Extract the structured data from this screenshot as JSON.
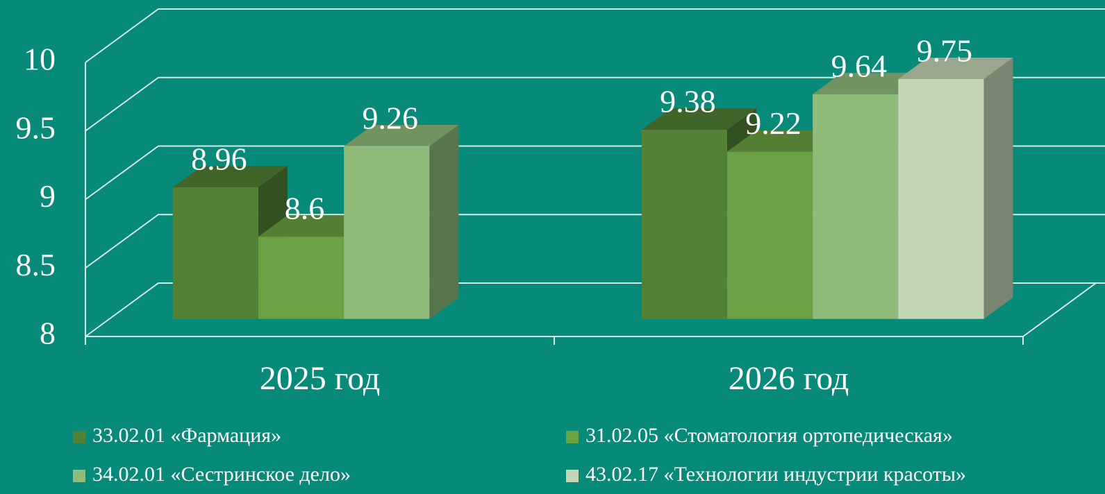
{
  "chart_data": {
    "type": "bar3d",
    "categories": [
      "2025 год",
      "2026 год"
    ],
    "series": [
      {
        "name": "33.02.01 «Фармация»",
        "color": "#538135",
        "values": [
          8.96,
          9.38
        ]
      },
      {
        "name": "31.02.05 «Стоматология ортопедическая»",
        "color": "#6aa142",
        "values": [
          8.6,
          9.22
        ]
      },
      {
        "name": "34.02.01 «Сестринское дело»",
        "color": "#8fbc7a",
        "values": [
          9.26,
          9.64
        ]
      },
      {
        "name": "43.02.17 «Технологии индустрии красоты»",
        "color": "#c3d6b6",
        "values": [
          null,
          9.75
        ]
      }
    ],
    "ylim": [
      8,
      10
    ],
    "yticks": [
      8,
      8.5,
      9,
      9.5,
      10
    ],
    "grid": true
  }
}
